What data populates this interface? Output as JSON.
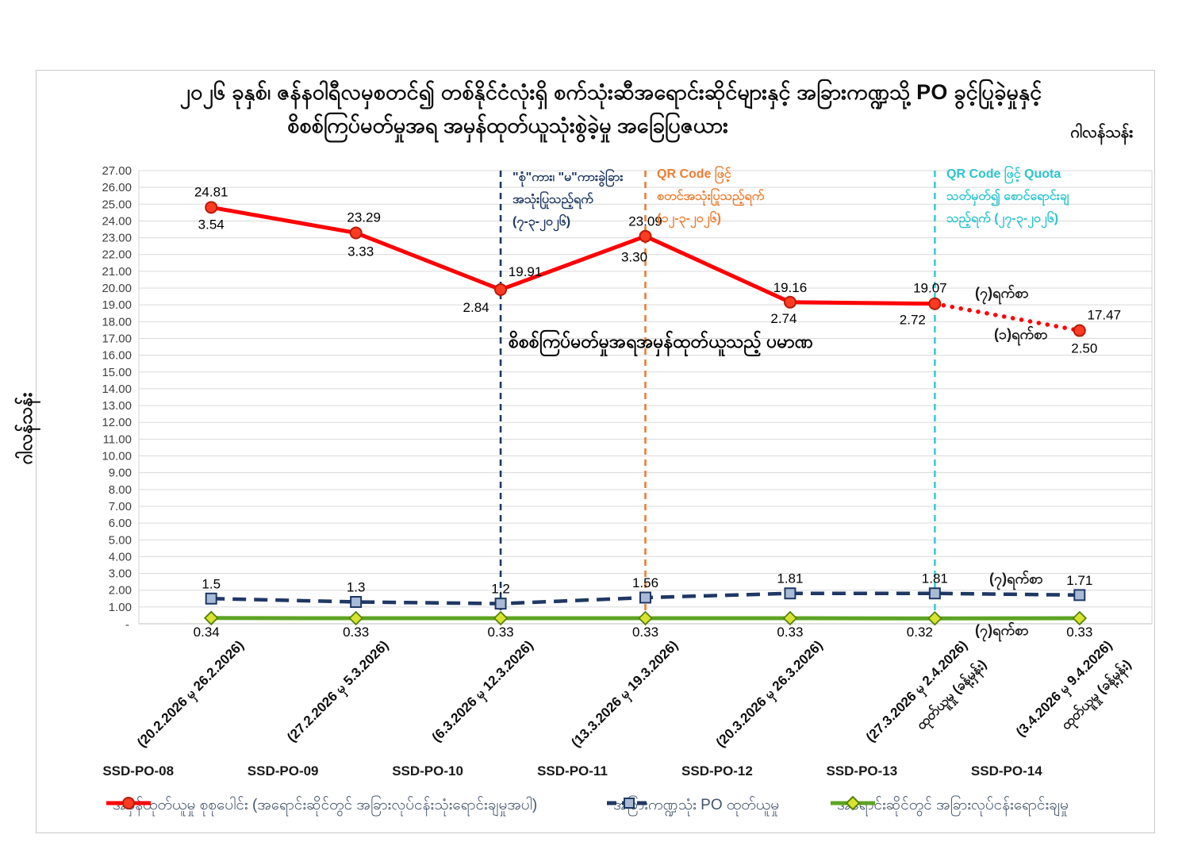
{
  "title": {
    "line1": "၂၀၂၆ ခုနှစ်၊ ဇန်နဝါရီလမှစတင်၍ တစ်နိုင်ငံလုံးရှိ စက်သုံးဆီအရောင်းဆိုင်များနှင့် အခြားကဏ္ဍသို့ PO ခွင့်ပြုခဲ့မှုနှင့်",
    "line2": "စိစစ်ကြပ်မတ်မှုအရ အမှန်ထုတ်ယူသုံးစွဲခဲ့မှု အခြေပြဇယား",
    "unit_right": "ဂါလန်သန်း"
  },
  "y_axis": {
    "title": "ဂါလန်သန်း",
    "zero_label": "-"
  },
  "chart_data": {
    "type": "line",
    "categories": [
      "SSD-PO-08",
      "SSD-PO-09",
      "SSD-PO-10",
      "SSD-PO-11",
      "SSD-PO-12",
      "SSD-PO-13",
      "SSD-PO-14"
    ],
    "category_date_ranges": [
      "(20.2.2026 မှ 26.2.2026)",
      "(27.2.2026 မှ 5.3.2026)",
      "(6.3.2026 မှ 12.3.2026)",
      "(13.3.2026 မှ 19.3.2026)",
      "(20.3.2026 မှ 26.3.2026)",
      "(27.3.2026 မှ 2.4.2026)",
      "(3.4.2026 မှ 9.4.2026)"
    ],
    "category_extra_labels": [
      "",
      "",
      "",
      "",
      "",
      "ထုတ်ယူမှု (ခန့်မှန်း)",
      "ထုတ်ယူမှု (ခန့်မှန်း)"
    ],
    "ylim": [
      0,
      27
    ],
    "ytick_step": 1,
    "grid": true,
    "legend_position": "bottom",
    "series": [
      {
        "name": "အမှန်ထုတ်ယူမှု စုစုပေါင်း (အရောင်းဆိုင်တွင် အခြားလုပ်ငန်းသုံးရောင်းချမှုအပါ)",
        "color": "#ff0000",
        "marker": "circle",
        "marker_fill": "#ff3b21",
        "marker_stroke": "#b71c0c",
        "line_style": "solid",
        "last_segment_style": "dotted",
        "values": [
          24.81,
          23.29,
          19.91,
          23.09,
          19.16,
          19.07,
          17.47
        ],
        "labels": [
          "24.81",
          "23.29",
          "19.91",
          "23.09",
          "19.16",
          "19.07",
          "17.47"
        ],
        "secondary_labels": [
          "3.54",
          "3.33",
          "2.84",
          "3.30",
          "2.74",
          "2.72",
          "2.50"
        ]
      },
      {
        "name": "အခြားကဏ္ဍသုံး PO ထုတ်ယူမှု",
        "color": "#1f3864",
        "marker": "square",
        "marker_fill": "#a9bad6",
        "marker_stroke": "#1f3864",
        "line_style": "dashed",
        "values": [
          1.5,
          1.3,
          1.2,
          1.56,
          1.81,
          1.81,
          1.71
        ],
        "labels": [
          "1.5",
          "1.3",
          "1.2",
          "1.56",
          "1.81",
          "1.81",
          "1.71"
        ]
      },
      {
        "name": "အရောင်းဆိုင်တွင် အခြားလုပ်ငန်းရောင်းချမှု",
        "color": "#5da423",
        "marker": "diamond",
        "marker_fill": "#d9e32f",
        "marker_stroke": "#56820a",
        "line_style": "solid",
        "values": [
          0.34,
          0.33,
          0.33,
          0.33,
          0.33,
          0.32,
          0.33
        ],
        "labels": [
          "0.34",
          "0.33",
          "0.33",
          "0.33",
          "0.33",
          "0.32",
          "0.33"
        ]
      }
    ]
  },
  "annotations": {
    "vline_navy": {
      "color": "#1f3864",
      "category_index": 2,
      "lines": [
        "\"စုံ\"ကား၊ \"မ\"ကားခွဲခြား",
        "အသုံးပြုသည့်ရက်",
        "(၇-၃-၂၀၂၆)"
      ]
    },
    "vline_orange": {
      "color": "#ed7d31",
      "category_index": 3,
      "lines": [
        "QR Code ဖြင့်",
        "စတင်အသုံးပြုသည့်ရက်",
        "(၁၂-၃-၂၀၂၆)"
      ]
    },
    "vline_cyan": {
      "color": "#3ec9d6",
      "category_index": 5,
      "lines": [
        "QR Code ဖြင့် Quota",
        "သတ်မှတ်၍ စောင်ရောင်းချ",
        "သည့်ရက် (၂၇-၃-၂၀၂၆)"
      ]
    },
    "center_note": "စိစစ်ကြပ်မတ်မှုအရအမှန်ထုတ်ယူသည့် ပမာဏ",
    "seven_days_top": "(၇)ရက်စာ",
    "one_day": "(၁)ရက်စာ",
    "seven_days_mid": "(၇)ရက်စာ",
    "seven_days_bottom": "(၇)ရက်စာ"
  }
}
